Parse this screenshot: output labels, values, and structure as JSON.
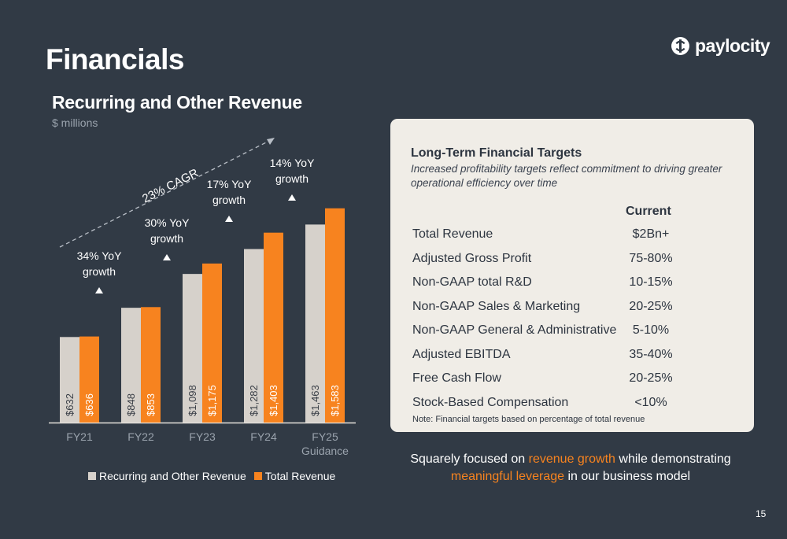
{
  "page": {
    "title": "Financials",
    "page_number": "15"
  },
  "brand": {
    "name": "paylocity",
    "icon": "paylocity-logo-icon"
  },
  "colors": {
    "background": "#313a45",
    "recurring": "#d6d1cb",
    "total": "#f7831f",
    "highlight": "#f7831f"
  },
  "chart_data": {
    "type": "bar",
    "title": "Recurring and Other Revenue",
    "subtitle": "$ millions",
    "categories": [
      "FY21",
      "FY22",
      "FY23",
      "FY24",
      "FY25\nGuidance"
    ],
    "series": [
      {
        "name": "Recurring and Other Revenue",
        "values": [
          632,
          848,
          1098,
          1282,
          1463
        ],
        "labels": [
          "$632",
          "$848",
          "$1,098",
          "$1,282",
          "$1,463"
        ],
        "color": "#d6d1cb"
      },
      {
        "name": "Total Revenue",
        "values": [
          636,
          853,
          1175,
          1403,
          1583
        ],
        "labels": [
          "$636",
          "$853",
          "$1,175",
          "$1,403",
          "$1,583"
        ],
        "color": "#f7831f"
      }
    ],
    "growth_annotations": [
      {
        "after": "FY21",
        "text": [
          "34% YoY",
          "growth"
        ]
      },
      {
        "after": "FY22",
        "text": [
          "30% YoY",
          "growth"
        ]
      },
      {
        "after": "FY23",
        "text": [
          "17% YoY",
          "growth"
        ]
      },
      {
        "after": "FY24",
        "text": [
          "14% YoY",
          "growth"
        ]
      }
    ],
    "cagr_label": "23% CAGR",
    "legend": "bottom",
    "grid": false
  },
  "targets_card": {
    "title": "Long-Term Financial Targets",
    "subtitle": "Increased profitability targets reflect commitment to driving greater operational efficiency over time",
    "column_header": "Current",
    "rows": [
      {
        "label": "Total Revenue",
        "value": "$2Bn+"
      },
      {
        "label": "Adjusted Gross Profit",
        "value": "75-80%"
      },
      {
        "label": "Non-GAAP total R&D",
        "value": "10-15%"
      },
      {
        "label": "Non-GAAP Sales & Marketing",
        "value": "20-25%"
      },
      {
        "label": "Non-GAAP General & Administrative",
        "value": "5-10%"
      },
      {
        "label": "Adjusted EBITDA",
        "value": "35-40%"
      },
      {
        "label": "Free Cash Flow",
        "value": "20-25%"
      },
      {
        "label": "Stock-Based Compensation",
        "value": "<10%"
      }
    ],
    "note": "Note: Financial targets based on percentage of total revenue"
  },
  "tagline": {
    "part1": "Squarely focused on ",
    "highlight1": "revenue growth",
    "part2": " while demonstrating ",
    "highlight2": "meaningful leverage",
    "part3": " in our business model"
  }
}
